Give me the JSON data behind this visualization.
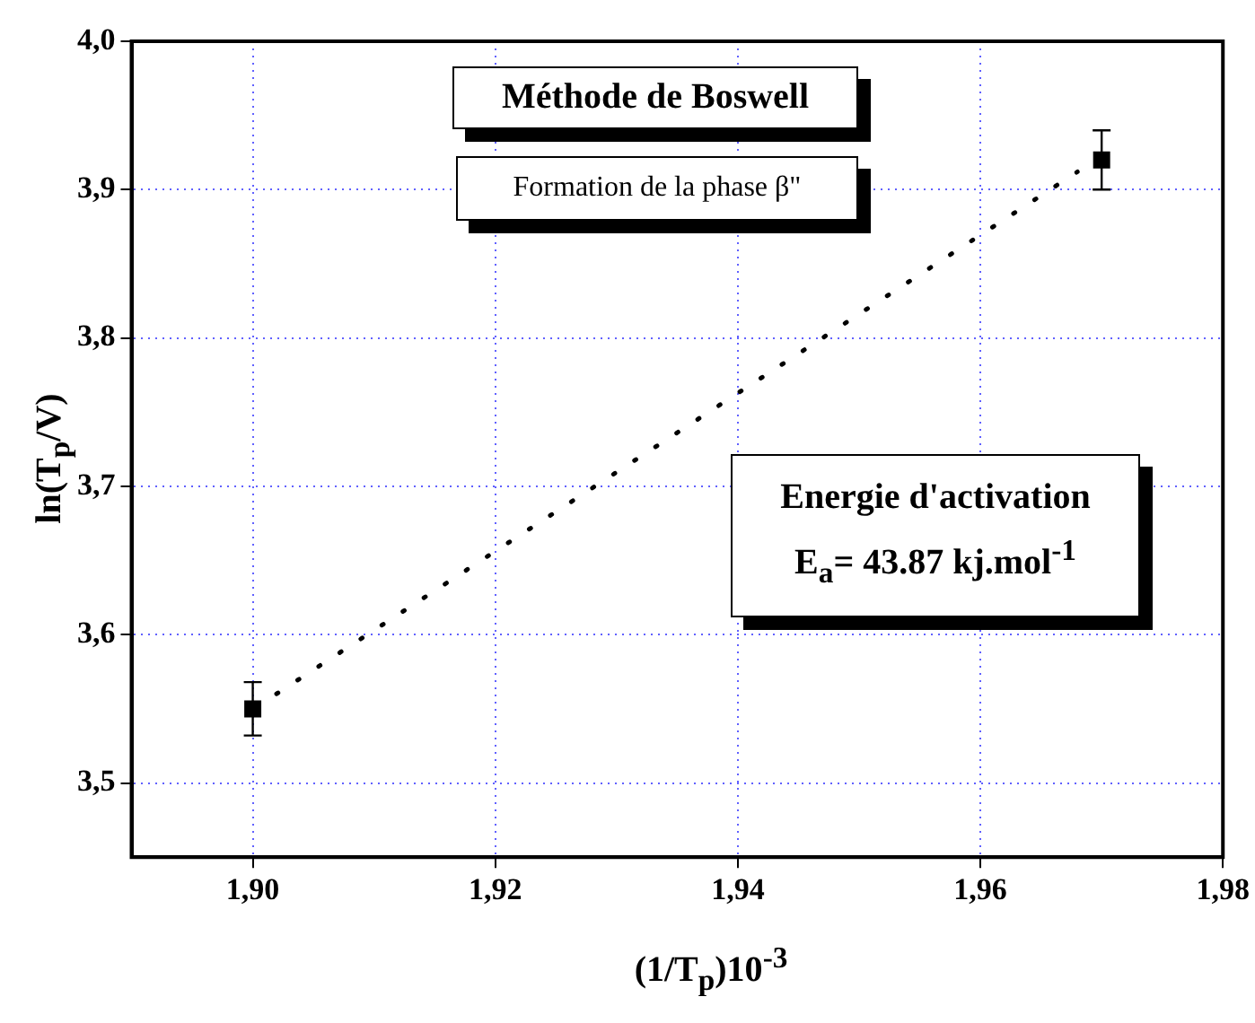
{
  "chart_data": {
    "type": "scatter",
    "xlabel": "(1/T$_{p}$)10$^{-3}$",
    "ylabel": "ln(T$_{p}$/V)",
    "annotations": [
      "Méthode de Boswell",
      "Formation de la phase β\"",
      "Energie d'activation",
      "E$_{a}$= 43.87 kj.mol$^{-1}$"
    ],
    "series": [
      {
        "type": "scatter",
        "color": "#000000",
        "marker": "square",
        "x": [
          1.9,
          1.97
        ],
        "values": [
          3.55,
          3.92
        ],
        "errors": [
          0.018,
          0.02
        ]
      },
      {
        "type": "line",
        "color": "#000000",
        "marker": "none",
        "line_style": "dotted",
        "x": [
          1.901,
          1.968
        ],
        "values": [
          3.555,
          3.912
        ]
      }
    ],
    "xlim": [
      1.89,
      1.98
    ],
    "ylim": [
      3.45,
      4.0
    ],
    "xticks": [
      {
        "value": 1.9,
        "label": "1,90"
      },
      {
        "value": 1.92,
        "label": "1,92"
      },
      {
        "value": 1.94,
        "label": "1,94"
      },
      {
        "value": 1.96,
        "label": "1,96"
      },
      {
        "value": 1.98,
        "label": "1,98"
      }
    ],
    "yticks": [
      {
        "value": 3.5,
        "label": "3,5"
      },
      {
        "value": 3.6,
        "label": "3,6"
      },
      {
        "value": 3.7,
        "label": "3,7"
      },
      {
        "value": 3.8,
        "label": "3,8"
      },
      {
        "value": 3.9,
        "label": "3,9"
      },
      {
        "value": 4.0,
        "label": "4,0"
      }
    ],
    "grid": true,
    "legend": false
  }
}
